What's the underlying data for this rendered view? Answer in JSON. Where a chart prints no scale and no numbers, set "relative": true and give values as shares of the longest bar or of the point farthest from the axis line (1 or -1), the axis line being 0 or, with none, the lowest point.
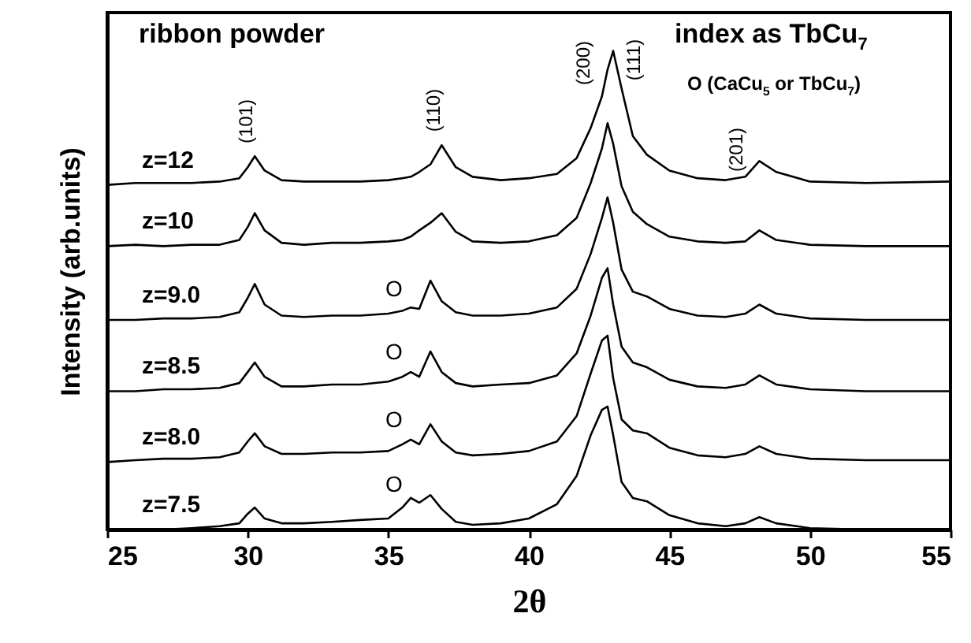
{
  "chart_data": {
    "type": "line",
    "relative": true,
    "xlabel": "2θ",
    "ylabel": "Intensity (arb.units)",
    "xlim": [
      25,
      55
    ],
    "xticks": [
      25,
      30,
      35,
      40,
      45,
      50,
      55
    ],
    "grid": false,
    "x": [
      25,
      26,
      27,
      28,
      29,
      29.7,
      30.0,
      30.25,
      30.6,
      31.2,
      32,
      33,
      34,
      35,
      35.5,
      35.8,
      36.1,
      36.5,
      36.9,
      37.4,
      38,
      39,
      40,
      41,
      41.7,
      42.2,
      42.6,
      42.8,
      43.0,
      43.3,
      43.7,
      44.2,
      45,
      46,
      47,
      47.7,
      48.2,
      48.8,
      50,
      52,
      55
    ],
    "series": [
      {
        "name": "z=12",
        "color": "#000000",
        "values": [
          0.72,
          0.724,
          0.724,
          0.724,
          0.727,
          0.734,
          0.757,
          0.78,
          0.75,
          0.73,
          0.727,
          0.727,
          0.727,
          0.73,
          0.734,
          0.737,
          0.747,
          0.763,
          0.803,
          0.757,
          0.737,
          0.73,
          0.734,
          0.743,
          0.776,
          0.839,
          0.905,
          0.961,
          1.0,
          0.921,
          0.822,
          0.783,
          0.75,
          0.734,
          0.73,
          0.737,
          0.77,
          0.747,
          0.727,
          0.724,
          0.727
        ]
      },
      {
        "name": "z=10",
        "color": "#000000",
        "values": [
          0.592,
          0.595,
          0.592,
          0.595,
          0.595,
          0.605,
          0.632,
          0.661,
          0.625,
          0.599,
          0.595,
          0.599,
          0.599,
          0.602,
          0.605,
          0.612,
          0.625,
          0.641,
          0.661,
          0.622,
          0.602,
          0.599,
          0.602,
          0.615,
          0.651,
          0.724,
          0.796,
          0.849,
          0.806,
          0.717,
          0.664,
          0.638,
          0.612,
          0.602,
          0.599,
          0.602,
          0.625,
          0.605,
          0.595,
          0.592,
          0.592
        ]
      },
      {
        "name": "z=9.0",
        "color": "#000000",
        "values": [
          0.438,
          0.438,
          0.441,
          0.441,
          0.444,
          0.454,
          0.484,
          0.513,
          0.47,
          0.447,
          0.444,
          0.447,
          0.447,
          0.451,
          0.457,
          0.464,
          0.461,
          0.52,
          0.477,
          0.454,
          0.447,
          0.447,
          0.451,
          0.464,
          0.503,
          0.576,
          0.651,
          0.694,
          0.641,
          0.543,
          0.497,
          0.487,
          0.461,
          0.447,
          0.444,
          0.451,
          0.47,
          0.451,
          0.441,
          0.438,
          0.438
        ]
      },
      {
        "name": "z=8.5",
        "color": "#000000",
        "values": [
          0.289,
          0.289,
          0.293,
          0.293,
          0.296,
          0.306,
          0.329,
          0.349,
          0.319,
          0.299,
          0.299,
          0.303,
          0.303,
          0.309,
          0.319,
          0.329,
          0.319,
          0.372,
          0.329,
          0.306,
          0.299,
          0.303,
          0.306,
          0.322,
          0.368,
          0.447,
          0.526,
          0.546,
          0.47,
          0.382,
          0.349,
          0.339,
          0.313,
          0.299,
          0.296,
          0.303,
          0.322,
          0.303,
          0.293,
          0.289,
          0.289
        ]
      },
      {
        "name": "z=8.0",
        "color": "#000000",
        "values": [
          0.141,
          0.145,
          0.148,
          0.148,
          0.151,
          0.161,
          0.184,
          0.201,
          0.174,
          0.158,
          0.158,
          0.161,
          0.161,
          0.164,
          0.178,
          0.188,
          0.178,
          0.22,
          0.184,
          0.161,
          0.155,
          0.158,
          0.164,
          0.184,
          0.237,
          0.326,
          0.395,
          0.405,
          0.316,
          0.23,
          0.207,
          0.201,
          0.171,
          0.155,
          0.151,
          0.158,
          0.174,
          0.158,
          0.148,
          0.145,
          0.145
        ]
      },
      {
        "name": "z=7.5",
        "color": "#000000",
        "values": [
          0,
          0,
          0,
          0.003,
          0.007,
          0.013,
          0.033,
          0.046,
          0.023,
          0.013,
          0.013,
          0.016,
          0.02,
          0.023,
          0.046,
          0.066,
          0.056,
          0.072,
          0.043,
          0.016,
          0.01,
          0.013,
          0.023,
          0.053,
          0.112,
          0.197,
          0.25,
          0.257,
          0.197,
          0.099,
          0.066,
          0.059,
          0.03,
          0.013,
          0.007,
          0.013,
          0.026,
          0.013,
          0.003,
          0,
          0
        ]
      }
    ],
    "annotations": [
      "ribbon  powder",
      "index  as TbCu$_{7}$",
      "O (CaCu$_{5}$ or TbCu$_{7}$)",
      "(101)",
      "(110)",
      "(200)",
      "(111)",
      "(201)",
      "O",
      "O",
      "O",
      "O"
    ]
  }
}
